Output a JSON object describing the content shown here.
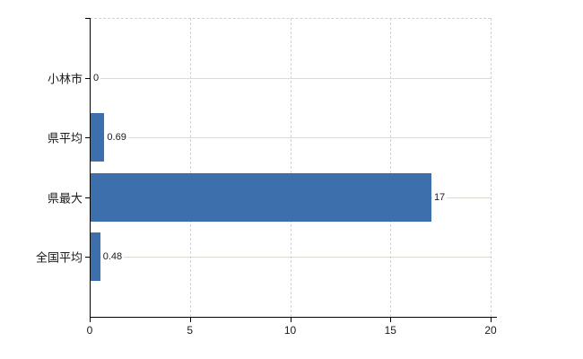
{
  "chart_data": {
    "type": "bar",
    "orientation": "horizontal",
    "title": "",
    "xlabel": "",
    "ylabel": "",
    "categories": [
      "小林市",
      "県平均",
      "県最大",
      "全国平均"
    ],
    "values": [
      0,
      0.69,
      17,
      0.48
    ],
    "value_labels": [
      "0",
      "0.69",
      "17",
      "0.48"
    ],
    "xlim": [
      0,
      20
    ],
    "xticks": [
      0,
      5,
      10,
      15,
      20
    ],
    "xtick_labels": [
      "0",
      "5",
      "10",
      "15",
      "20"
    ],
    "grid": true,
    "legend": false,
    "colors": {
      "bar": "#3d6fad",
      "grid_horizontal": "#d9dbd3",
      "grid_vertical": "#d6cfd6",
      "plot_top_border": "#d2d2d2",
      "axis": "#000000",
      "text": "#1a1a1a",
      "background": "#ffffff"
    }
  }
}
